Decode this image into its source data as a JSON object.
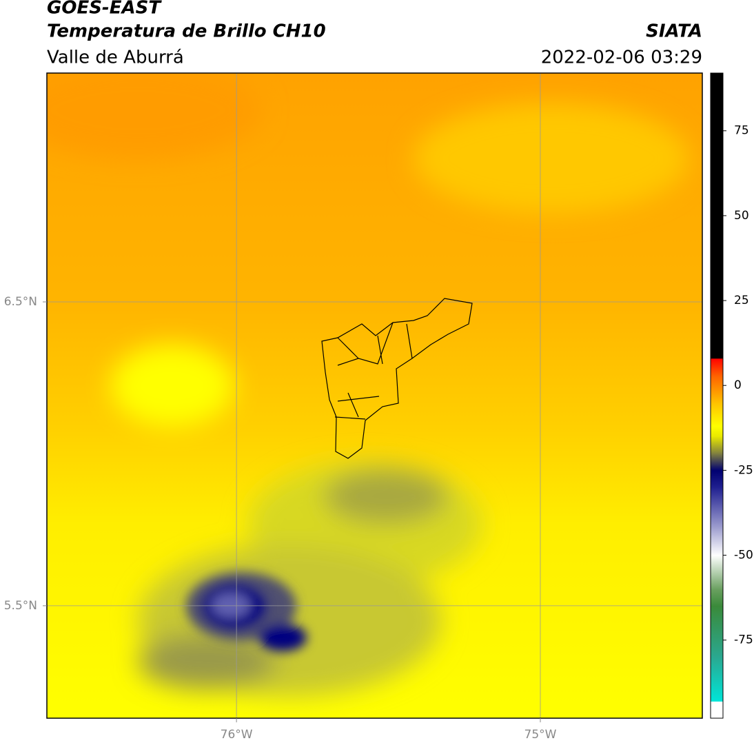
{
  "header": {
    "title": "GOES-EAST",
    "subtitle": "Temperatura de Brillo CH10",
    "source": "SIATA",
    "region": "Valle de Aburrá",
    "timestamp": "2022-02-06 03:29"
  },
  "map": {
    "lonlim": [
      -76.624,
      -74.467
    ],
    "latlim": [
      5.13,
      7.253
    ],
    "lonticks": [
      {
        "value": -76,
        "label": "76°W"
      },
      {
        "value": -75,
        "label": "75°W"
      }
    ],
    "latticks": [
      {
        "value": 6.5,
        "label": "6.5°N"
      },
      {
        "value": 5.5,
        "label": "5.5°N"
      }
    ],
    "grid": true
  },
  "colorbar": {
    "lim": [
      -98,
      92
    ],
    "ticks": [
      75,
      50,
      25,
      0,
      -25,
      -50,
      -75
    ],
    "colormap": [
      {
        "value": -98,
        "color": "#ffffff"
      },
      {
        "value": -93,
        "color": "#ffffff"
      },
      {
        "value": -93,
        "color": "#00e5d8"
      },
      {
        "value": -80,
        "color": "#2aa890"
      },
      {
        "value": -65,
        "color": "#3a8a3a"
      },
      {
        "value": -60,
        "color": "#6aa060"
      },
      {
        "value": -50,
        "color": "#ffffff"
      },
      {
        "value": -42,
        "color": "#a0a0d0"
      },
      {
        "value": -30,
        "color": "#202090"
      },
      {
        "value": -25,
        "color": "#000070"
      },
      {
        "value": -20,
        "color": "#808040"
      },
      {
        "value": -15,
        "color": "#e8e800"
      },
      {
        "value": -12,
        "color": "#ffff00"
      },
      {
        "value": -5,
        "color": "#ffc000"
      },
      {
        "value": 3,
        "color": "#ff6000"
      },
      {
        "value": 8,
        "color": "#ff0000"
      },
      {
        "value": 8,
        "color": "#000000"
      },
      {
        "value": 92,
        "color": "#000000"
      }
    ]
  }
}
